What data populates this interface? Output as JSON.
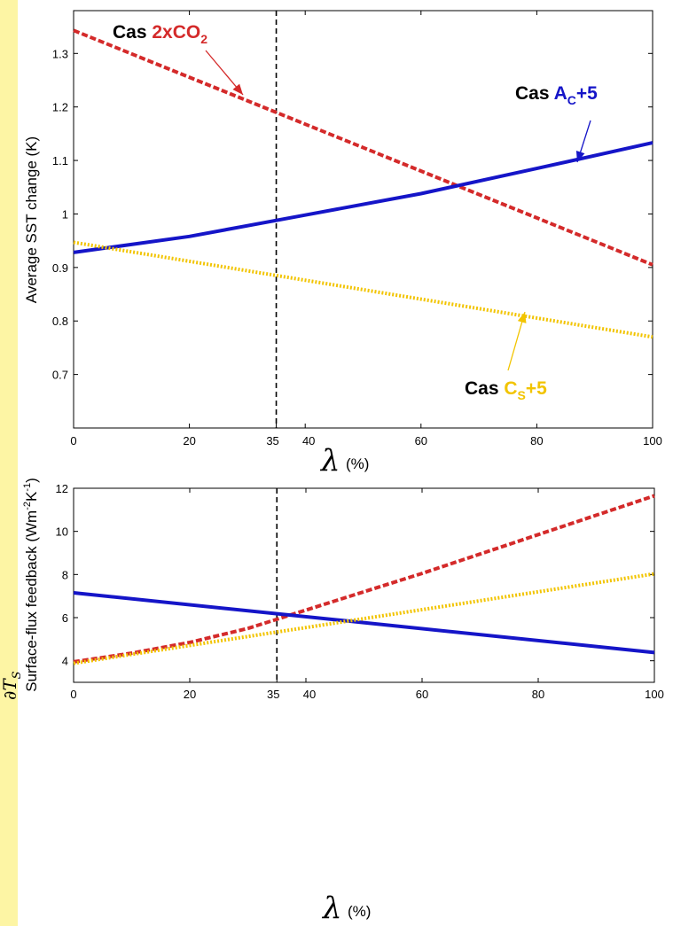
{
  "colors": {
    "co2": "#d42a2a",
    "ac": "#1515c8",
    "cs": "#f2c400",
    "strip": "#fdf5a4"
  },
  "chart_data": [
    {
      "type": "line",
      "ylabel": "Average SST change (K)",
      "xlabel_symbol": "λ",
      "xlabel_unit": "(%)",
      "xlim": [
        0,
        100
      ],
      "ylim": [
        0.6,
        1.38
      ],
      "xticks": [
        0,
        20,
        35,
        40,
        60,
        80,
        100
      ],
      "yticks": [
        0.7,
        0.8,
        0.9,
        1,
        1.1,
        1.2,
        1.3
      ],
      "ytick_labels": [
        "0.7",
        "0.8",
        "0.9",
        "1",
        "1.1",
        "1.2",
        "1.3"
      ],
      "vline_x": 35,
      "series": [
        {
          "id": "co2",
          "style": "dashed",
          "x": [
            0,
            100
          ],
          "y": [
            1.343,
            0.905
          ]
        },
        {
          "id": "ac",
          "style": "solid",
          "x": [
            0,
            20,
            40,
            60,
            80,
            100
          ],
          "y": [
            0.928,
            0.958,
            0.998,
            1.038,
            1.085,
            1.133
          ]
        },
        {
          "id": "cs",
          "style": "dotted",
          "x": [
            0,
            100
          ],
          "y": [
            0.947,
            0.77
          ]
        }
      ],
      "annotations": [
        {
          "id": "co2",
          "prefix": "Cas",
          "label": "2xCO",
          "sub": "2",
          "suffix": ""
        },
        {
          "id": "ac",
          "prefix": "Cas",
          "label": "A",
          "sub": "C",
          "suffix": "+5"
        },
        {
          "id": "cs",
          "prefix": "Cas",
          "label": "C",
          "sub": "S",
          "suffix": "+5"
        }
      ]
    },
    {
      "type": "line",
      "ylabel": "Surface-flux feedback (Wm-2K-1)",
      "ylabel_main": "Surface-flux feedback (Wm",
      "ylabel_sup1": "-2",
      "ylabel_mid": "K",
      "ylabel_sup2": "-1",
      "ylabel_end": ")",
      "ylabel_symbol": "∂T",
      "ylabel_symbol_sub": "S",
      "xlabel_symbol": "λ",
      "xlabel_unit": "(%)",
      "xlim": [
        0,
        100
      ],
      "ylim": [
        3,
        12
      ],
      "xticks": [
        0,
        20,
        35,
        40,
        60,
        80,
        100
      ],
      "yticks": [
        4,
        6,
        8,
        10,
        12
      ],
      "ytick_labels": [
        "4",
        "6",
        "8",
        "10",
        "12"
      ],
      "vline_x": 35,
      "series": [
        {
          "id": "co2",
          "style": "dashed",
          "x": [
            0,
            10,
            20,
            30,
            40,
            50,
            60,
            70,
            80,
            90,
            100
          ],
          "y": [
            3.95,
            4.35,
            4.85,
            5.5,
            6.35,
            7.2,
            8.05,
            8.95,
            9.85,
            10.75,
            11.65
          ]
        },
        {
          "id": "ac",
          "style": "solid",
          "x": [
            0,
            100
          ],
          "y": [
            7.15,
            4.38
          ]
        },
        {
          "id": "cs",
          "style": "dotted",
          "x": [
            0,
            100
          ],
          "y": [
            3.88,
            8.03
          ]
        }
      ]
    }
  ]
}
